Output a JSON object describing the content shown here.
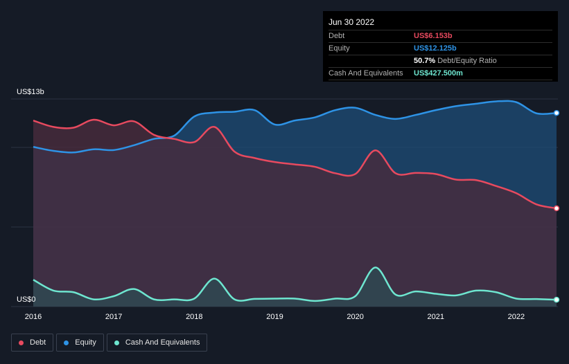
{
  "tooltip": {
    "date": "Jun 30 2022",
    "rows": [
      {
        "label": "Debt",
        "value": "US$6.153b",
        "color": "#e84a5f"
      },
      {
        "label": "Equity",
        "value": "US$12.125b",
        "color": "#2e93e6"
      },
      {
        "ratio_value": "50.7%",
        "ratio_label": "Debt/Equity Ratio"
      },
      {
        "label": "Cash And Equivalents",
        "value": "US$427.500m",
        "color": "#6ee6d0"
      }
    ]
  },
  "legend": [
    {
      "label": "Debt",
      "color": "#e84a5f"
    },
    {
      "label": "Equity",
      "color": "#2e93e6"
    },
    {
      "label": "Cash And Equivalents",
      "color": "#6ee6d0"
    }
  ],
  "chart_data": {
    "type": "area",
    "y_top_label": "US$13b",
    "y_bottom_label": "US$0",
    "ylim": [
      0,
      13
    ],
    "xlim": [
      2016,
      2022.5
    ],
    "x_ticks": [
      "2016",
      "2017",
      "2018",
      "2019",
      "2020",
      "2021",
      "2022"
    ],
    "x": [
      2016.0,
      2016.25,
      2016.5,
      2016.75,
      2017.0,
      2017.25,
      2017.5,
      2017.75,
      2018.0,
      2018.25,
      2018.5,
      2018.75,
      2019.0,
      2019.25,
      2019.5,
      2019.75,
      2020.0,
      2020.25,
      2020.5,
      2020.75,
      2021.0,
      2021.25,
      2021.5,
      2021.75,
      2022.0,
      2022.25,
      2022.5
    ],
    "series": [
      {
        "name": "Debt",
        "color": "#e84a5f",
        "values": [
          11.65,
          11.25,
          11.2,
          11.7,
          11.35,
          11.6,
          10.75,
          10.5,
          10.3,
          11.25,
          9.7,
          9.3,
          9.05,
          8.9,
          8.75,
          8.35,
          8.3,
          9.78,
          8.35,
          8.37,
          8.3,
          7.95,
          7.92,
          7.55,
          7.1,
          6.4,
          6.153
        ]
      },
      {
        "name": "Equity",
        "color": "#2e93e6",
        "values": [
          10.0,
          9.75,
          9.65,
          9.85,
          9.8,
          10.1,
          10.5,
          10.7,
          11.9,
          12.15,
          12.2,
          12.3,
          11.4,
          11.65,
          11.85,
          12.3,
          12.45,
          12.0,
          11.75,
          12.0,
          12.3,
          12.55,
          12.7,
          12.85,
          12.8,
          12.1,
          12.125
        ]
      },
      {
        "name": "Cash And Equivalents",
        "color": "#6ee6d0",
        "values": [
          1.68,
          1.0,
          0.9,
          0.45,
          0.65,
          1.1,
          0.45,
          0.45,
          0.5,
          1.75,
          0.45,
          0.48,
          0.5,
          0.5,
          0.35,
          0.5,
          0.65,
          2.45,
          0.75,
          0.95,
          0.8,
          0.7,
          1.0,
          0.9,
          0.5,
          0.47,
          0.4275
        ]
      }
    ],
    "grid": true
  }
}
